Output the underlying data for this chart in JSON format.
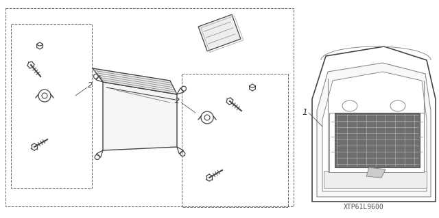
{
  "bg_color": "#ffffff",
  "fig_width": 6.4,
  "fig_height": 3.19,
  "dpi": 100,
  "footnote": "XTP61L9600",
  "lc": "#444444",
  "lc2": "#888888"
}
